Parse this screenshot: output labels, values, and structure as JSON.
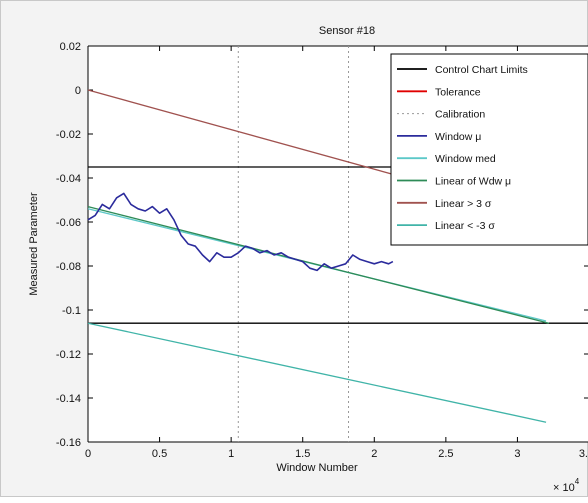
{
  "chart_data": {
    "type": "line",
    "title": "Sensor #18",
    "xlabel": "Window Number",
    "ylabel": "Measured Parameter",
    "x_exponent_label": "× 10",
    "x_exponent_power": "4",
    "xlim": [
      0,
      3.5
    ],
    "ylim": [
      -0.16,
      0.02
    ],
    "x_ticks": [
      0,
      0.5,
      1,
      1.5,
      2,
      2.5,
      3,
      3.5
    ],
    "x_tick_labels": [
      "0",
      "0.5",
      "1",
      "1.5",
      "2",
      "2.5",
      "3",
      "3."
    ],
    "y_ticks": [
      0.02,
      0,
      -0.02,
      -0.04,
      -0.06,
      -0.08,
      -0.1,
      -0.12,
      -0.14,
      -0.16
    ],
    "y_tick_labels": [
      "0.02",
      "0",
      "-0.02",
      "-0.04",
      "-0.06",
      "-0.08",
      "-0.1",
      "-0.12",
      "-0.14",
      "-0.16"
    ],
    "grid": false,
    "legend_position": "top-right",
    "series": [
      {
        "name": "Control Chart Limits",
        "color": "#000000",
        "style": "solid",
        "segments": [
          {
            "x": [
              0,
              3.5
            ],
            "y": [
              -0.035,
              -0.035
            ]
          },
          {
            "x": [
              0,
              3.5
            ],
            "y": [
              -0.106,
              -0.106
            ]
          }
        ]
      },
      {
        "name": "Tolerance",
        "color": "#e00000",
        "style": "solid",
        "segments": []
      },
      {
        "name": "Calibration",
        "color": "#999999",
        "style": "dotted",
        "segments": [
          {
            "x": [
              1.05,
              1.05
            ],
            "y": [
              0.02,
              -0.16
            ]
          },
          {
            "x": [
              1.82,
              1.82
            ],
            "y": [
              0.02,
              -0.16
            ]
          }
        ]
      },
      {
        "name": "Window μ",
        "color": "#2b2b9c",
        "style": "noisy",
        "x": [
          0,
          0.05,
          0.1,
          0.15,
          0.2,
          0.25,
          0.3,
          0.35,
          0.4,
          0.45,
          0.5,
          0.55,
          0.6,
          0.65,
          0.7,
          0.75,
          0.8,
          0.85,
          0.9,
          0.95,
          1.0,
          1.05,
          1.1,
          1.15,
          1.2,
          1.25,
          1.3,
          1.35,
          1.4,
          1.45,
          1.5,
          1.55,
          1.6,
          1.65,
          1.7,
          1.75,
          1.8,
          1.85,
          1.9,
          1.95,
          2.0,
          2.05,
          2.1,
          2.13
        ],
        "y": [
          -0.059,
          -0.057,
          -0.052,
          -0.054,
          -0.049,
          -0.047,
          -0.052,
          -0.054,
          -0.055,
          -0.053,
          -0.056,
          -0.054,
          -0.059,
          -0.066,
          -0.07,
          -0.071,
          -0.075,
          -0.078,
          -0.074,
          -0.076,
          -0.076,
          -0.074,
          -0.071,
          -0.072,
          -0.074,
          -0.073,
          -0.075,
          -0.074,
          -0.076,
          -0.077,
          -0.078,
          -0.081,
          -0.082,
          -0.079,
          -0.081,
          -0.08,
          -0.079,
          -0.075,
          -0.077,
          -0.078,
          -0.079,
          -0.078,
          -0.079,
          -0.078
        ]
      },
      {
        "name": "Window med",
        "color": "#5cc8c8",
        "style": "solid",
        "x": [
          0,
          3.2
        ],
        "y": [
          -0.054,
          -0.105
        ]
      },
      {
        "name": "Linear of Wdw μ",
        "color": "#2e8b57",
        "style": "solid",
        "x": [
          0,
          3.22
        ],
        "y": [
          -0.053,
          -0.106
        ]
      },
      {
        "name": "Linear > 3 σ",
        "color": "#a0524f",
        "style": "solid",
        "x": [
          0,
          2.5
        ],
        "y": [
          0.0,
          -0.045
        ]
      },
      {
        "name": "Linear < -3 σ",
        "color": "#40b4a8",
        "style": "solid",
        "x": [
          0,
          3.2
        ],
        "y": [
          -0.106,
          -0.151
        ]
      }
    ]
  }
}
